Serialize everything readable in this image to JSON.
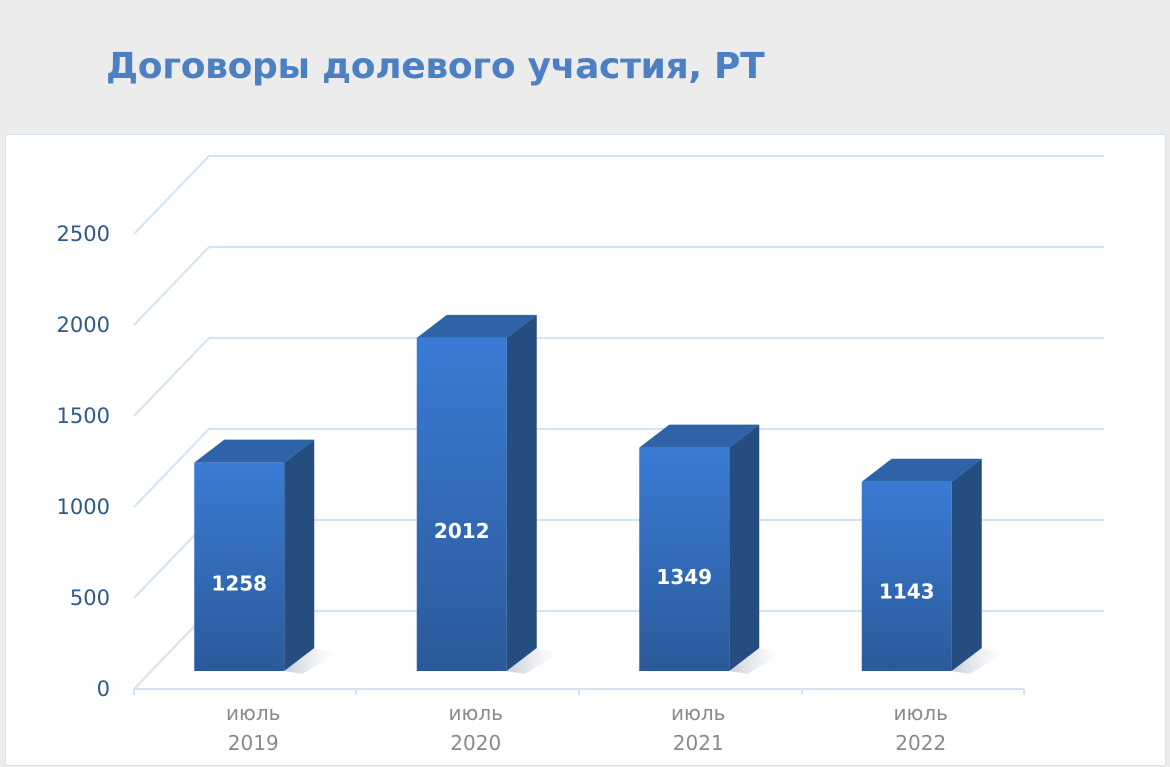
{
  "title": "Договоры долевого участия, РТ",
  "chart_data": {
    "type": "bar",
    "title": "Договоры долевого участия, РТ",
    "categories": [
      {
        "line1": "июль",
        "line2": "2019"
      },
      {
        "line1": "июль",
        "line2": "2020"
      },
      {
        "line1": "июль",
        "line2": "2021"
      },
      {
        "line1": "июль",
        "line2": "2022"
      }
    ],
    "values": [
      1258,
      2012,
      1349,
      1143
    ],
    "ylim": [
      0,
      2500
    ],
    "yticks": [
      0,
      500,
      1000,
      1500,
      2000,
      2500
    ],
    "grid": true,
    "three_d": true,
    "colors": {
      "bar_front": "#3a7bd5",
      "bar_front_dark": "#2b5a9a",
      "bar_side": "#254d80",
      "bar_top": "#2f63a8",
      "grid": "#d4e3f2",
      "tick_text": "#2e5a8a",
      "category_text": "#8a8a8a"
    }
  }
}
